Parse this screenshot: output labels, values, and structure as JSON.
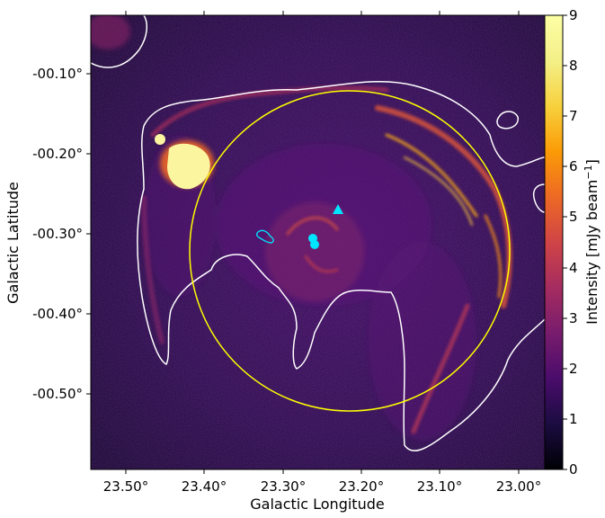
{
  "figure": {
    "xlabel": "Galactic Longitude",
    "ylabel": "Galactic Latitude",
    "x_ticks": [
      "23.50°",
      "23.40°",
      "23.30°",
      "23.20°",
      "23.10°",
      "23.00°"
    ],
    "y_ticks": [
      "-00.10°",
      "-00.20°",
      "-00.30°",
      "-00.40°",
      "-00.50°"
    ],
    "colorbar": {
      "label": "Intensity [mJy beam",
      "label_exponent": "−1",
      "label_close": "]",
      "colormap": "inferno",
      "range": [
        0,
        9
      ],
      "ticks": [
        "0",
        "1",
        "2",
        "3",
        "4",
        "5",
        "6",
        "7",
        "8",
        "9"
      ]
    },
    "overlays": {
      "circle_color": "#ffff00",
      "contour_color": "#ffffff",
      "marker_color": "#00e5ff",
      "markers": [
        "triangle",
        "circle",
        "circle",
        "small-contour"
      ]
    }
  }
}
